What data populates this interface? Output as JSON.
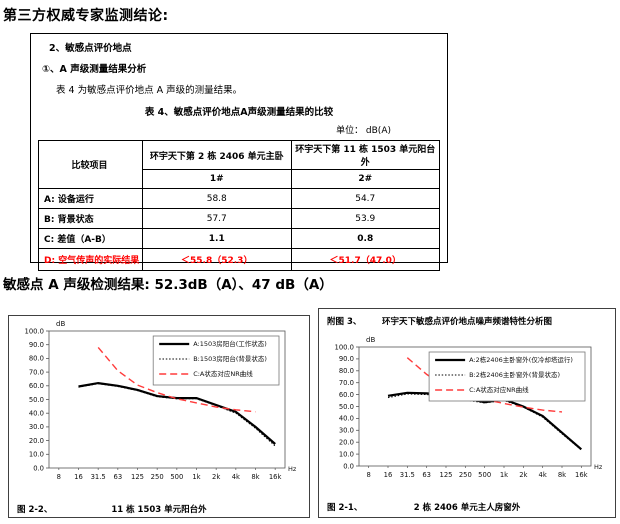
{
  "page": {
    "title": "第三方权威专家监测结论:",
    "result_line": "敏感点 A 声级检测结果: 52.3dB（A）、47 dB（A）"
  },
  "report_box": {
    "section_heading": "2、敏感点评价地点",
    "sub_heading": "①、A 声级测量结果分析",
    "intro_text": "表 4 为敏感点评价地点 A 声级的测量结果。",
    "table_title": "表 4、敏感点评价地点A声级测量结果的比较",
    "unit_label": "单位：  dB(A)",
    "table": {
      "header_col": "比较项目",
      "location_headers": [
        "环宇天下第 2 栋 2406 单元主卧",
        "环宇天下第 11 栋 1503 单元阳台外"
      ],
      "point_labels": [
        "1#",
        "2#"
      ],
      "rows": [
        {
          "label": "A: 设备运行",
          "v1": "58.8",
          "v2": "54.7"
        },
        {
          "label": "B: 背景状态",
          "v1": "57.7",
          "v2": "53.9"
        },
        {
          "label": "C: 差值（A-B）",
          "v1": "1.1",
          "v2": "0.8"
        },
        {
          "label": "D: 空气传声的实际结果",
          "v1": "＜55.8（52.3）",
          "v2": "＜51.7（47.0）"
        }
      ]
    },
    "colors": {
      "highlight_red": "#ff0000"
    }
  },
  "chart_data": [
    {
      "type": "line",
      "figure_label": "图 2-2、",
      "caption": "11 栋 1503 单元阳台外",
      "ylabel": "dB",
      "xlabel": "Hz",
      "ylim": [
        0,
        100
      ],
      "ytick_step": 10,
      "legend_position": "top-right",
      "grid": false,
      "categories": [
        "8",
        "16",
        "31.5",
        "63",
        "125",
        "250",
        "500",
        "1k",
        "2k",
        "4k",
        "8k",
        "16k"
      ],
      "series": [
        {
          "name": "A:1503房阳台(工作状态)",
          "line": "solid",
          "color": "#000000",
          "values": [
            null,
            59.5,
            62,
            60,
            57,
            52.5,
            51,
            51,
            46,
            41,
            30,
            17.5
          ]
        },
        {
          "name": "B:1503房阳台(背景状态)",
          "line": "dotted",
          "color": "#000000",
          "values": [
            null,
            59,
            61.5,
            59.5,
            56.5,
            52,
            50.5,
            50.5,
            45.5,
            40,
            29,
            16
          ]
        },
        {
          "name": "C:A状态对应NR曲线",
          "line": "dashed",
          "color": "#ff3b3b",
          "values": [
            null,
            null,
            88,
            71,
            60.5,
            55,
            50.5,
            47.5,
            44.5,
            42.5,
            41,
            null
          ]
        }
      ]
    },
    {
      "type": "line",
      "title_label": "附图 3、",
      "title": "环宇天下敏感点评价地点噪声频谱特性分析图",
      "figure_label": "图 2-1、",
      "caption": "2 栋 2406 单元主人房窗外",
      "ylabel": "dB",
      "xlabel": "Hz",
      "ylim": [
        0,
        100
      ],
      "ytick_step": 10,
      "legend_position": "top-right",
      "grid": false,
      "categories": [
        "8",
        "16",
        "31.5",
        "63",
        "125",
        "250",
        "500",
        "1k",
        "2k",
        "4k",
        "8k",
        "16k"
      ],
      "series": [
        {
          "name": "A:2栋2406主卧窗外(仅冷却塔运行)",
          "line": "solid",
          "color": "#000000",
          "values": [
            null,
            59,
            61.5,
            61,
            60,
            57,
            53.5,
            56,
            50,
            42,
            28,
            14
          ]
        },
        {
          "name": "B:2栋2406主卧窗外(背景状态)",
          "line": "dotted",
          "color": "#000000",
          "values": [
            null,
            57.5,
            60.5,
            60,
            58.5,
            55.5,
            53,
            55,
            49.5,
            41,
            27,
            13.5
          ]
        },
        {
          "name": "C:A状态对应NR曲线",
          "line": "dashed",
          "color": "#ff3b3b",
          "values": [
            null,
            null,
            91,
            77,
            66.5,
            60,
            56,
            52.5,
            49.5,
            47,
            45.5,
            null
          ]
        }
      ]
    }
  ]
}
